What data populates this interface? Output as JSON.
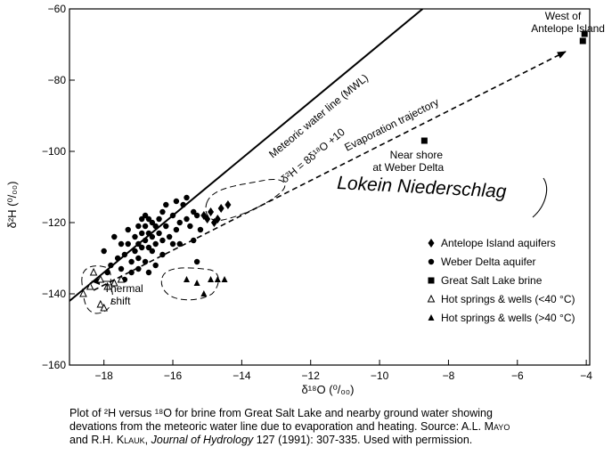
{
  "chart_data": {
    "type": "scatter",
    "xlabel": "δ¹⁸O (⁰/₀₀)",
    "ylabel": "δ²H (⁰/₀₀)",
    "xlim": [
      -19,
      -3.9
    ],
    "ylim": [
      -160,
      -60
    ],
    "x_ticks": [
      -18,
      -16,
      -14,
      -12,
      -10,
      -8,
      -6,
      -4
    ],
    "y_ticks": [
      -160,
      -140,
      -120,
      -100,
      -80,
      -60
    ],
    "x_tick_labels": [
      "−18",
      "−16",
      "−14",
      "−12",
      "−10",
      "−8",
      "−6",
      "−4"
    ],
    "y_tick_labels": [
      "−160",
      "−140",
      "−120",
      "−100",
      "−80",
      "−60"
    ],
    "grid": false,
    "legend_position": "lower-right",
    "lines": [
      {
        "label": "Meteoric water line (MWL)",
        "equation": "δ²H = 8δ¹⁸O +10",
        "style": "solid",
        "points": [
          [
            -19,
            -142
          ],
          [
            -8.75,
            -60
          ]
        ]
      },
      {
        "label": "Evaporation trajectory",
        "style": "dashed",
        "points": [
          [
            -18.3,
            -139
          ],
          [
            -4.6,
            -72
          ]
        ]
      }
    ],
    "series": [
      {
        "name": "Antelope Island aquifers",
        "marker": "diamond",
        "points": [
          [
            -15.1,
            -118
          ],
          [
            -14.9,
            -117
          ],
          [
            -14.8,
            -120
          ],
          [
            -14.6,
            -116
          ],
          [
            -14.4,
            -115
          ],
          [
            -14.7,
            -119
          ],
          [
            -15.0,
            -119
          ]
        ]
      },
      {
        "name": "Weber Delta aquifer",
        "marker": "circle",
        "points": [
          [
            -18.0,
            -128
          ],
          [
            -17.9,
            -134
          ],
          [
            -17.8,
            -132
          ],
          [
            -17.7,
            -124
          ],
          [
            -17.6,
            -130
          ],
          [
            -17.5,
            -126
          ],
          [
            -17.5,
            -133
          ],
          [
            -17.4,
            -136
          ],
          [
            -17.4,
            -129
          ],
          [
            -17.3,
            -122
          ],
          [
            -17.3,
            -126
          ],
          [
            -17.2,
            -131
          ],
          [
            -17.2,
            -134
          ],
          [
            -17.1,
            -128
          ],
          [
            -17.1,
            -124
          ],
          [
            -17.0,
            -121
          ],
          [
            -17.0,
            -126
          ],
          [
            -17.0,
            -130
          ],
          [
            -17.0,
            -133
          ],
          [
            -16.9,
            -119
          ],
          [
            -16.9,
            -123
          ],
          [
            -16.9,
            -127
          ],
          [
            -16.8,
            -118
          ],
          [
            -16.8,
            -121
          ],
          [
            -16.8,
            -125
          ],
          [
            -16.8,
            -131
          ],
          [
            -16.7,
            -119
          ],
          [
            -16.7,
            -123
          ],
          [
            -16.7,
            -127
          ],
          [
            -16.7,
            -134
          ],
          [
            -16.6,
            -120
          ],
          [
            -16.6,
            -124
          ],
          [
            -16.6,
            -128
          ],
          [
            -16.5,
            -121
          ],
          [
            -16.5,
            -126
          ],
          [
            -16.5,
            -132
          ],
          [
            -16.4,
            -119
          ],
          [
            -16.4,
            -123
          ],
          [
            -16.3,
            -125
          ],
          [
            -16.3,
            -129
          ],
          [
            -16.3,
            -117
          ],
          [
            -16.2,
            -121
          ],
          [
            -16.1,
            -124
          ],
          [
            -16.0,
            -118
          ],
          [
            -16.0,
            -126
          ],
          [
            -15.9,
            -122
          ],
          [
            -15.8,
            -120
          ],
          [
            -15.8,
            -126
          ],
          [
            -15.7,
            -115
          ],
          [
            -15.6,
            -113
          ],
          [
            -15.5,
            -121
          ],
          [
            -15.4,
            -117
          ],
          [
            -15.4,
            -125
          ],
          [
            -15.3,
            -118
          ],
          [
            -15.3,
            -131
          ],
          [
            -15.2,
            -122
          ],
          [
            -15.9,
            -114
          ],
          [
            -16.2,
            -115
          ],
          [
            -15.6,
            -119
          ]
        ]
      },
      {
        "name": "Great Salt Lake brine",
        "marker": "square",
        "points": [
          [
            -8.7,
            -97
          ],
          [
            -4.05,
            -67
          ],
          [
            -4.1,
            -69
          ]
        ]
      },
      {
        "name": "Hot springs & wells (<40 °C)",
        "marker": "open-triangle",
        "points": [
          [
            -18.6,
            -140
          ],
          [
            -18.4,
            -138
          ],
          [
            -18.3,
            -134
          ],
          [
            -18.1,
            -136
          ],
          [
            -18.1,
            -143
          ],
          [
            -18.0,
            -144
          ],
          [
            -17.9,
            -138
          ],
          [
            -17.7,
            -137
          ],
          [
            -17.5,
            -136
          ]
        ]
      },
      {
        "name": "Hot springs & wells (>40 °C)",
        "marker": "filled-triangle",
        "points": [
          [
            -15.6,
            -136
          ],
          [
            -15.3,
            -137
          ],
          [
            -15.1,
            -140
          ],
          [
            -14.9,
            -136
          ],
          [
            -14.7,
            -136
          ],
          [
            -14.5,
            -136
          ]
        ]
      }
    ],
    "annotations": [
      {
        "text": "West of",
        "x": -5.2,
        "y": -63
      },
      {
        "text": "Antelope Island",
        "x": -5.6,
        "y": -66.5
      },
      {
        "text": "Near shore",
        "x": -9.7,
        "y": -102
      },
      {
        "text": "at Weber Delta",
        "x": -10.2,
        "y": -105.5
      },
      {
        "text": "Thermal",
        "x": -18.0,
        "y": -139.5
      },
      {
        "text": "shift",
        "x": -17.8,
        "y": -143
      }
    ],
    "handwriting": "Lokein Niederschlag",
    "colors": {
      "ink": "#000000",
      "background": "#ffffff"
    }
  },
  "caption": {
    "line1": "Plot of  ²H versus  ¹⁸O for brine from Great Salt Lake and nearby ground water showing",
    "line2": "devations from the meteoric water line due to evaporation and heating. Source: A.L. ",
    "author1": "Mayo",
    "line3": "and R.H. ",
    "author2": "Klauk",
    "line3b": ", ",
    "journal": "Journal of Hydrology",
    "line3c": " 127 (1991): 307-335. Used with permission."
  }
}
